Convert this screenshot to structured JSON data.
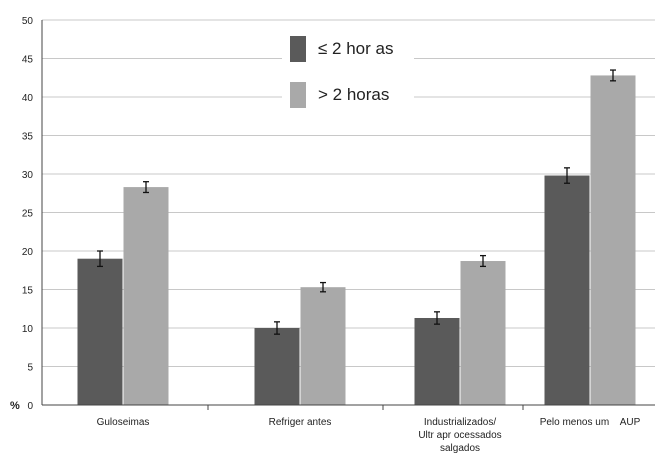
{
  "chart_data": {
    "type": "bar",
    "title": "",
    "xlabel": "",
    "ylabel": "%",
    "ylim": [
      0,
      50
    ],
    "yticks": [
      "0",
      "5",
      "10",
      "15",
      "20",
      "25",
      "30",
      "35",
      "40",
      "45",
      "50"
    ],
    "grid": true,
    "legend_position": "top-center",
    "categories": [
      [
        "Guloseimas"
      ],
      [
        "Refriger antes"
      ],
      [
        "Industrializados/",
        "Ultr apr ocessados",
        "salgados"
      ],
      [
        "Pelo menos um    AUP"
      ]
    ],
    "series": [
      {
        "name": "≤ 2 hor as",
        "color": "#5a5a5a",
        "values": [
          19.0,
          10.0,
          11.3,
          29.8
        ],
        "errors": [
          1.0,
          0.8,
          0.8,
          1.0
        ]
      },
      {
        "name": "> 2 horas",
        "color": "#a9a9a9",
        "values": [
          28.3,
          15.3,
          18.7,
          42.8
        ],
        "errors": [
          0.7,
          0.6,
          0.7,
          0.7
        ]
      }
    ]
  }
}
